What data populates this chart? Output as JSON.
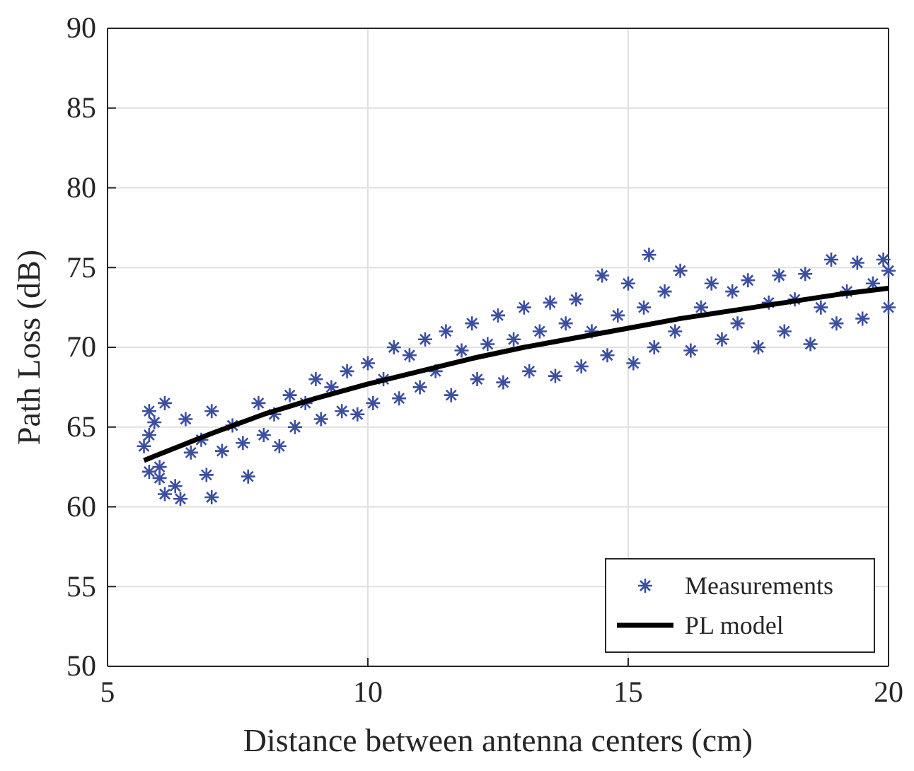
{
  "chart_data": {
    "type": "scatter",
    "xlabel": "Distance between antenna centers (cm)",
    "ylabel": "Path Loss (dB)",
    "xlim": [
      5,
      20
    ],
    "ylim": [
      50,
      90
    ],
    "xticks": [
      5,
      10,
      15,
      20
    ],
    "yticks": [
      50,
      55,
      60,
      65,
      70,
      75,
      80,
      85,
      90
    ],
    "grid": true,
    "legend": "bottom right",
    "series": [
      {
        "name": "Measurements",
        "color": "#3b4fa0",
        "marker": "cross",
        "x": [
          5.7,
          5.8,
          5.8,
          5.8,
          5.9,
          6.0,
          6.0,
          6.1,
          6.1,
          6.3,
          6.4,
          6.5,
          6.6,
          6.8,
          6.9,
          7.0,
          7.0,
          7.2,
          7.4,
          7.6,
          7.7,
          7.9,
          8.0,
          8.2,
          8.3,
          8.5,
          8.6,
          8.8,
          9.0,
          9.1,
          9.3,
          9.5,
          9.6,
          9.8,
          10.0,
          10.1,
          10.3,
          10.5,
          10.6,
          10.8,
          11.0,
          11.1,
          11.3,
          11.5,
          11.6,
          11.8,
          12.0,
          12.1,
          12.3,
          12.5,
          12.6,
          12.8,
          13.0,
          13.1,
          13.3,
          13.5,
          13.6,
          13.8,
          14.0,
          14.1,
          14.3,
          14.5,
          14.6,
          14.8,
          15.0,
          15.1,
          15.3,
          15.4,
          15.5,
          15.7,
          15.9,
          16.0,
          16.2,
          16.4,
          16.6,
          16.8,
          17.0,
          17.1,
          17.3,
          17.5,
          17.7,
          17.9,
          18.0,
          18.2,
          18.4,
          18.5,
          18.7,
          18.9,
          19.0,
          19.2,
          19.4,
          19.5,
          19.7,
          19.9,
          20.0,
          20.0
        ],
        "values": [
          63.8,
          66.0,
          64.5,
          62.2,
          65.3,
          62.5,
          61.8,
          66.5,
          60.8,
          61.3,
          60.5,
          65.5,
          63.4,
          64.2,
          62.0,
          60.6,
          66.0,
          63.5,
          65.1,
          64.0,
          61.9,
          66.5,
          64.5,
          65.8,
          63.8,
          67.0,
          65.0,
          66.5,
          68.0,
          65.5,
          67.5,
          66.0,
          68.5,
          65.8,
          69.0,
          66.5,
          68.0,
          70.0,
          66.8,
          69.5,
          67.5,
          70.5,
          68.5,
          71.0,
          67.0,
          69.8,
          71.5,
          68.0,
          70.2,
          72.0,
          67.8,
          70.5,
          72.5,
          68.5,
          71.0,
          72.8,
          68.2,
          71.5,
          73.0,
          68.8,
          71.0,
          74.5,
          69.5,
          72.0,
          74.0,
          69.0,
          72.5,
          75.8,
          70.0,
          73.5,
          71.0,
          74.8,
          69.8,
          72.5,
          74.0,
          70.5,
          73.5,
          71.5,
          74.2,
          70.0,
          72.8,
          74.5,
          71.0,
          73.0,
          74.6,
          70.2,
          72.5,
          75.5,
          71.5,
          73.5,
          75.3,
          71.8,
          74.0,
          75.5,
          72.5,
          74.8
        ]
      },
      {
        "name": "PL model",
        "type": "line",
        "color": "#000000",
        "marker": "none",
        "line_style": "solid",
        "x": [
          5.7,
          6,
          7,
          8,
          9,
          10,
          11,
          12,
          13,
          14,
          15,
          16,
          17,
          18,
          19,
          20
        ],
        "values": [
          62.9,
          63.3,
          64.6,
          65.8,
          66.8,
          67.7,
          68.5,
          69.3,
          70.0,
          70.6,
          71.2,
          71.8,
          72.3,
          72.8,
          73.3,
          73.7
        ]
      }
    ]
  }
}
